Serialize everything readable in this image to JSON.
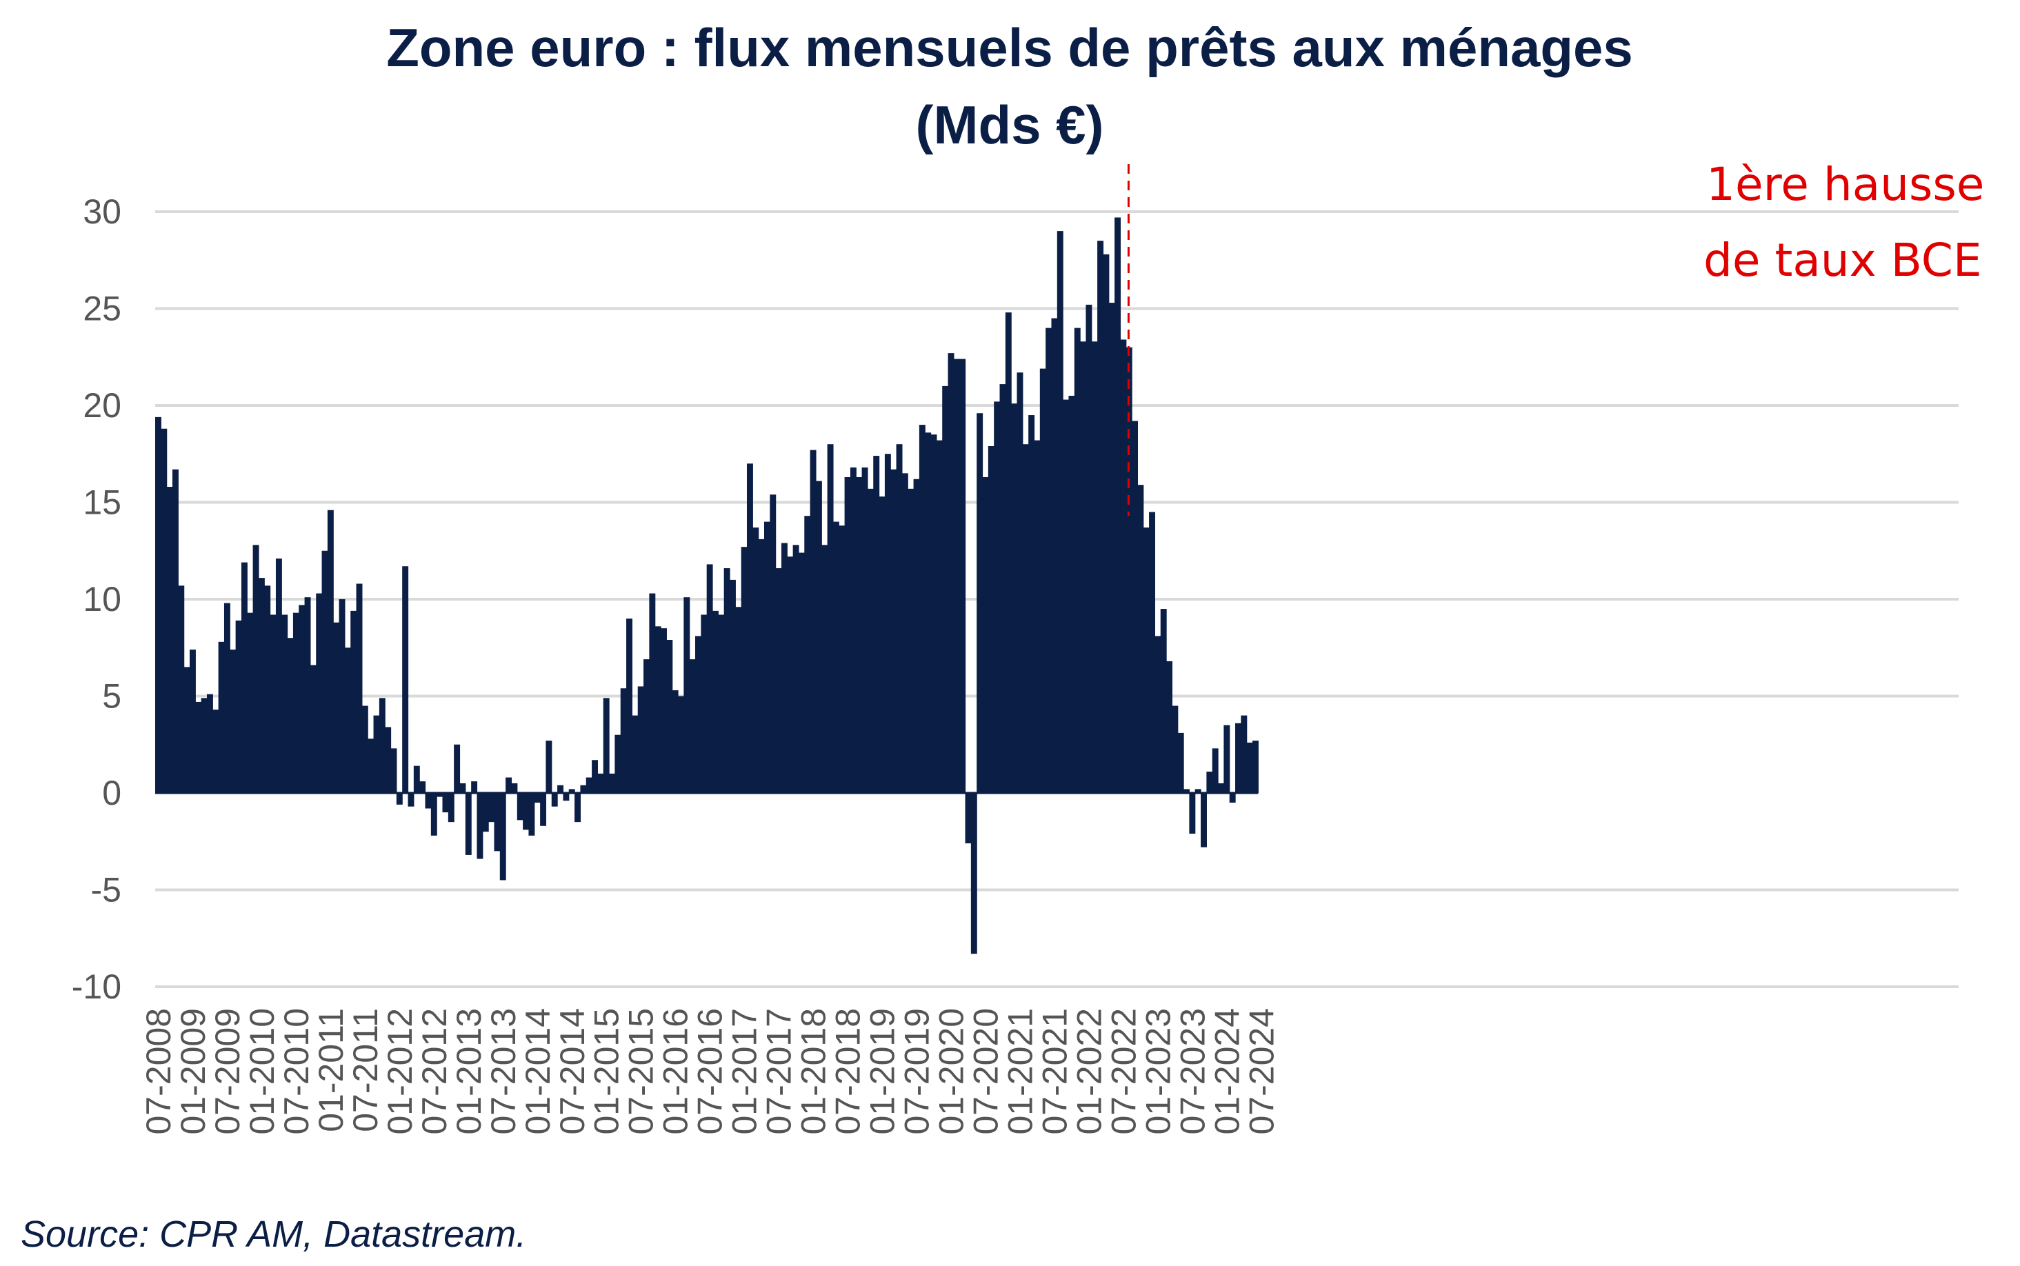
{
  "chart_data": {
    "type": "bar",
    "title": "Zone euro : flux mensuels de prêts aux ménages",
    "subtitle": "(Mds €)",
    "xlabel": "",
    "ylabel": "",
    "ylim": [
      -10,
      30
    ],
    "yticks": [
      "30",
      "25",
      "20",
      "15",
      "10",
      "5",
      "0",
      "-5",
      "-10"
    ],
    "start_month": "07-2008",
    "x_tick_labels": [
      "07-2008",
      "01-2009",
      "07-2009",
      "01-2010",
      "07-2010",
      "01-2011",
      "07-2011",
      "01-2012",
      "07-2012",
      "01-2013",
      "07-2013",
      "01-2014",
      "07-2014",
      "01-2015",
      "07-2015",
      "01-2016",
      "07-2016",
      "01-2017",
      "07-2017",
      "01-2018",
      "07-2018",
      "01-2019",
      "07-2019",
      "01-2020",
      "07-2020",
      "01-2021",
      "07-2021",
      "01-2022",
      "07-2022",
      "01-2023",
      "07-2023",
      "01-2024",
      "07-2024"
    ],
    "grid": true,
    "bar_color": "#0b1e45",
    "values": [
      19.4,
      18.8,
      15.8,
      16.7,
      10.7,
      6.5,
      7.4,
      4.7,
      4.9,
      5.1,
      4.3,
      7.8,
      9.8,
      7.4,
      8.9,
      11.9,
      9.3,
      12.8,
      11.1,
      10.7,
      9.2,
      12.1,
      9.2,
      8.0,
      9.3,
      9.7,
      10.1,
      6.6,
      10.3,
      12.5,
      14.6,
      8.8,
      10.0,
      7.5,
      9.4,
      10.8,
      4.5,
      2.8,
      4.0,
      4.9,
      3.4,
      2.3,
      -0.6,
      11.7,
      -0.7,
      1.4,
      0.6,
      -0.8,
      -2.2,
      -0.2,
      -1.0,
      -1.5,
      2.5,
      0.5,
      -3.2,
      0.6,
      -3.4,
      -2.0,
      -1.5,
      -3.0,
      -4.5,
      0.8,
      0.5,
      -1.4,
      -1.9,
      -2.2,
      -0.5,
      -1.7,
      2.7,
      -0.7,
      0.4,
      -0.4,
      0.2,
      -1.5,
      0.4,
      0.8,
      1.7,
      1.0,
      4.9,
      1.0,
      3.0,
      5.4,
      9.0,
      4.0,
      5.5,
      6.9,
      10.3,
      8.6,
      8.5,
      7.9,
      5.3,
      5.0,
      10.1,
      6.9,
      8.1,
      9.2,
      11.8,
      9.4,
      9.2,
      11.6,
      11.0,
      9.6,
      12.7,
      17.0,
      13.7,
      13.1,
      14.0,
      15.4,
      11.6,
      12.9,
      12.2,
      12.8,
      12.4,
      14.3,
      17.7,
      16.1,
      12.8,
      18.0,
      14.0,
      13.8,
      16.3,
      16.8,
      16.3,
      16.8,
      15.7,
      17.4,
      15.3,
      17.5,
      16.7,
      18.0,
      16.5,
      15.7,
      16.2,
      19.0,
      18.6,
      18.5,
      18.2,
      21.0,
      22.7,
      22.4,
      22.4,
      -2.6,
      -8.3,
      19.6,
      16.3,
      17.9,
      20.2,
      21.1,
      24.8,
      20.1,
      21.7,
      18.0,
      19.5,
      18.2,
      21.9,
      24.0,
      24.5,
      29.0,
      20.3,
      20.5,
      24.0,
      23.3,
      25.2,
      23.3,
      28.5,
      27.8,
      25.3,
      29.7,
      23.4,
      23.0,
      19.2,
      15.9,
      13.7,
      14.5,
      8.1,
      9.5,
      6.8,
      4.5,
      3.1,
      0.2,
      -2.1,
      0.2,
      -2.8,
      1.1,
      2.3,
      0.5,
      3.5,
      -0.5,
      3.6,
      4.0,
      2.6,
      2.7
    ],
    "annotations": [
      {
        "label_line1": "1ère hausse",
        "label_line2": "de taux BCE",
        "style": "dashed-vertical",
        "color": "#e00000",
        "month": "07-2022"
      }
    ]
  },
  "source": "Source: CPR AM, Datastream."
}
